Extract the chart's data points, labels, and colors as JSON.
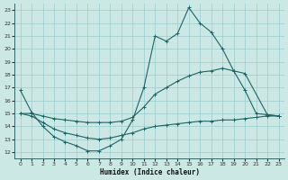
{
  "xlabel": "Humidex (Indice chaleur)",
  "background_color": "#cce8e4",
  "grid_color": "#99cccc",
  "line_color": "#1a6666",
  "xlim": [
    -0.5,
    23.5
  ],
  "ylim": [
    11.5,
    23.5
  ],
  "xticks": [
    0,
    1,
    2,
    3,
    4,
    5,
    6,
    7,
    8,
    9,
    10,
    11,
    12,
    13,
    14,
    15,
    16,
    17,
    18,
    19,
    20,
    21,
    22,
    23
  ],
  "yticks": [
    12,
    13,
    14,
    15,
    16,
    17,
    18,
    19,
    20,
    21,
    22,
    23
  ],
  "line1_x": [
    0,
    1,
    2,
    3,
    4,
    5,
    6,
    7,
    8,
    9,
    10,
    11,
    12,
    13,
    14,
    15,
    16,
    17,
    18,
    19,
    20,
    21,
    22,
    23
  ],
  "line1_y": [
    16.8,
    15.1,
    14.0,
    13.2,
    12.8,
    12.5,
    12.1,
    12.1,
    12.5,
    13.0,
    14.5,
    17.0,
    21.0,
    20.6,
    21.2,
    23.2,
    22.0,
    21.3,
    20.0,
    18.3,
    16.8,
    15.0,
    14.9,
    14.8
  ],
  "line2_x": [
    0,
    1,
    2,
    3,
    4,
    5,
    6,
    7,
    8,
    9,
    10,
    11,
    12,
    13,
    14,
    15,
    16,
    17,
    18,
    19,
    20,
    22,
    23
  ],
  "line2_y": [
    15.0,
    15.0,
    14.8,
    14.6,
    14.5,
    14.4,
    14.3,
    14.3,
    14.3,
    14.4,
    14.7,
    15.5,
    16.5,
    17.0,
    17.5,
    17.9,
    18.2,
    18.3,
    18.5,
    18.3,
    18.1,
    14.9,
    14.8
  ],
  "line3_x": [
    0,
    1,
    2,
    3,
    4,
    5,
    6,
    7,
    8,
    9,
    10,
    11,
    12,
    13,
    14,
    15,
    16,
    17,
    18,
    19,
    20,
    21,
    22,
    23
  ],
  "line3_y": [
    15.0,
    14.8,
    14.3,
    13.8,
    13.5,
    13.3,
    13.1,
    13.0,
    13.1,
    13.3,
    13.5,
    13.8,
    14.0,
    14.1,
    14.2,
    14.3,
    14.4,
    14.4,
    14.5,
    14.5,
    14.6,
    14.7,
    14.8,
    14.8
  ]
}
